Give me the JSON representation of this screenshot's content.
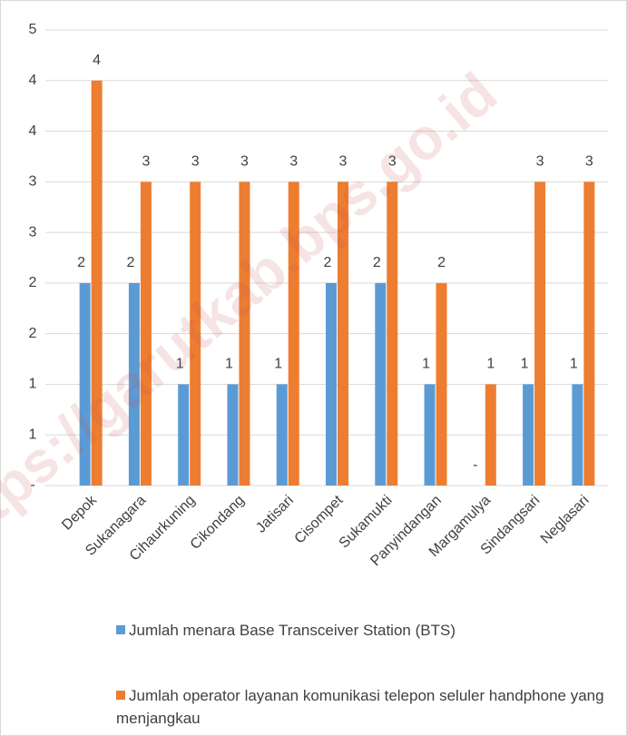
{
  "chart_data": {
    "type": "bar",
    "watermark": "https://garutkab.bps.go.id",
    "categories": [
      "Depok",
      "Sukanagara",
      "Cihaurkuning",
      "Cikondang",
      "Jatisari",
      "Cisompet",
      "Sukamukti",
      "Panyindangan",
      "Margamulya",
      "Sindangsari",
      "Neglasari"
    ],
    "series": [
      {
        "name": "Jumlah menara Base Transceiver Station (BTS)",
        "color": "#5b9bd5",
        "values": [
          2,
          2,
          1,
          1,
          1,
          2,
          2,
          1,
          0,
          1,
          1
        ],
        "value_labels": [
          "2",
          "2",
          "1",
          "1",
          "1",
          "2",
          "2",
          "1",
          "-",
          "1",
          "1"
        ]
      },
      {
        "name": "Jumlah operator layanan komunikasi telepon seluler handphone yang menjangkau",
        "color": "#ed7d31",
        "values": [
          4,
          3,
          3,
          3,
          3,
          3,
          3,
          2,
          1,
          3,
          3
        ]
      }
    ],
    "ylim": [
      0,
      4.5
    ],
    "yticks": [
      {
        "value": 0,
        "label": "-"
      },
      {
        "value": 0.5,
        "label": "1"
      },
      1,
      {
        "value": 1.5,
        "label": "2"
      },
      2,
      {
        "value": 2.5,
        "label": "3"
      },
      3,
      {
        "value": 3.5,
        "label": "4"
      },
      4,
      {
        "value": 4.5,
        "label": "5"
      }
    ],
    "grid": true,
    "legend": "bottom"
  }
}
